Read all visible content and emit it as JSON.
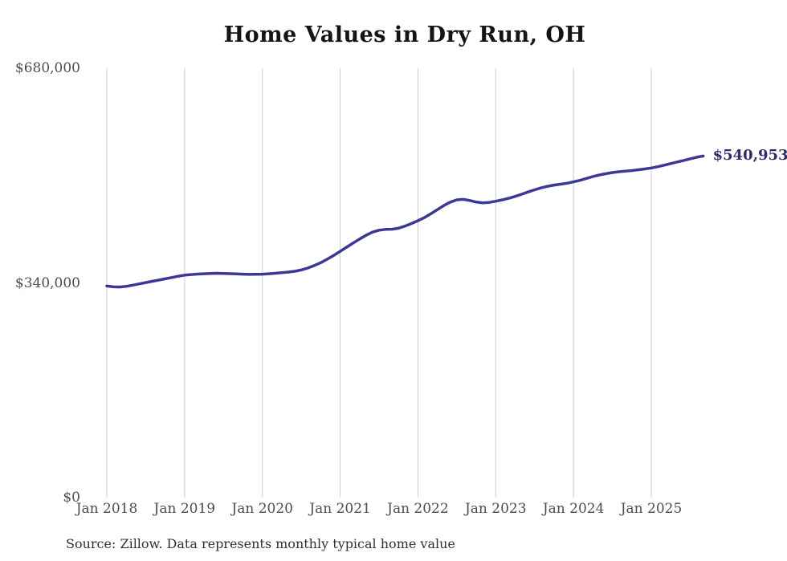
{
  "title": "Home Values in Dry Run, OH",
  "source_note": "Source: Zillow. Data represents monthly typical home value",
  "end_label": "$540,953",
  "colors": {
    "line": "#3b3896",
    "end_label_text": "#2d2d6e",
    "grid": "#cccccc",
    "axis_text": "#4d4d4d",
    "title_text": "#141414",
    "source_text": "#303030",
    "background": "#ffffff"
  },
  "chart_data": {
    "type": "line",
    "title": "Home Values in Dry Run, OH",
    "xlabel": "",
    "ylabel": "",
    "ylim": [
      0,
      680000
    ],
    "grid": "vertical-only",
    "legend": "none",
    "x_start_label": "Jan 2018",
    "x_frequency": "monthly",
    "x_tick_labels": [
      "Jan 2018",
      "Jan 2019",
      "Jan 2020",
      "Jan 2021",
      "Jan 2022",
      "Jan 2023",
      "Jan 2024",
      "Jan 2025"
    ],
    "y_ticks": [
      {
        "label": "$680,000",
        "value": 680000
      },
      {
        "label": "$340,000",
        "value": 340000
      },
      {
        "label": "$0",
        "value": 0
      }
    ],
    "series": [
      {
        "name": "Typical home value",
        "final_value": 540953,
        "final_value_label": "$540,953",
        "values": [
          335000,
          333800,
          333500,
          334500,
          336500,
          338500,
          340500,
          342500,
          344500,
          346500,
          348500,
          350500,
          352300,
          353200,
          354000,
          354500,
          355000,
          355200,
          355000,
          354600,
          354200,
          353800,
          353500,
          353600,
          353900,
          354500,
          355300,
          356200,
          357200,
          358400,
          360500,
          363500,
          367500,
          372000,
          377500,
          383500,
          390000,
          396500,
          403000,
          409500,
          415500,
          420500,
          423500,
          424800,
          425000,
          426500,
          430000,
          434000,
          438500,
          443500,
          449500,
          456000,
          462500,
          468000,
          471500,
          472300,
          470500,
          468000,
          466800,
          467500,
          469400,
          471500,
          474000,
          477000,
          480500,
          484000,
          487500,
          490500,
          493000,
          495000,
          496300,
          497800,
          500000,
          502500,
          505500,
          508500,
          511000,
          513000,
          514800,
          516000,
          517000,
          518000,
          519200,
          520500,
          522000,
          524000,
          526500,
          529000,
          531500,
          534000,
          536500,
          539000,
          540953
        ]
      }
    ]
  }
}
